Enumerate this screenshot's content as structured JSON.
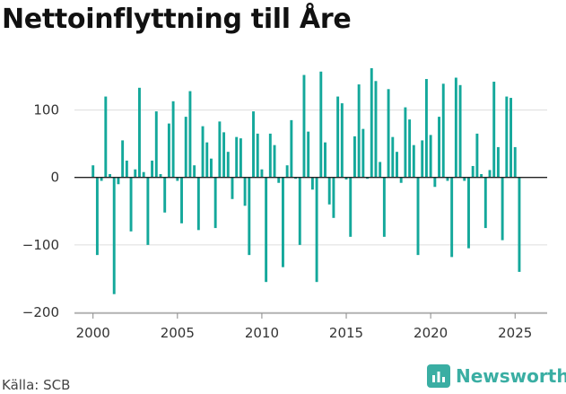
{
  "title": "Nettoinflyttning till Åre",
  "source": "Källa: SCB",
  "brand": {
    "name": "Newsworthy",
    "icon": "chart-bubble-icon"
  },
  "colors": {
    "bar": "#14a89b",
    "zero_line": "#222222",
    "grid": "#dddddd",
    "brand": "#3aaea3"
  },
  "chart_data": {
    "type": "bar",
    "title": "Nettoinflyttning till Åre",
    "xlabel": "",
    "ylabel": "",
    "ylim": [
      -200,
      170
    ],
    "yticks": [
      -200,
      -100,
      0,
      100
    ],
    "xlim": [
      1998.9,
      2026.9
    ],
    "xticks": [
      2000,
      2005,
      2010,
      2015,
      2020,
      2025
    ],
    "grid": true,
    "x": [
      2000.0,
      2000.25,
      2000.5,
      2000.75,
      2001.0,
      2001.25,
      2001.5,
      2001.75,
      2002.0,
      2002.25,
      2002.5,
      2002.75,
      2003.0,
      2003.25,
      2003.5,
      2003.75,
      2004.0,
      2004.25,
      2004.5,
      2004.75,
      2005.0,
      2005.25,
      2005.5,
      2005.75,
      2006.0,
      2006.25,
      2006.5,
      2006.75,
      2007.0,
      2007.25,
      2007.5,
      2007.75,
      2008.0,
      2008.25,
      2008.5,
      2008.75,
      2009.0,
      2009.25,
      2009.5,
      2009.75,
      2010.0,
      2010.25,
      2010.5,
      2010.75,
      2011.0,
      2011.25,
      2011.5,
      2011.75,
      2012.0,
      2012.25,
      2012.5,
      2012.75,
      2013.0,
      2013.25,
      2013.5,
      2013.75,
      2014.0,
      2014.25,
      2014.5,
      2014.75,
      2015.0,
      2015.25,
      2015.5,
      2015.75,
      2016.0,
      2016.25,
      2016.5,
      2016.75,
      2017.0,
      2017.25,
      2017.5,
      2017.75,
      2018.0,
      2018.25,
      2018.5,
      2018.75,
      2019.0,
      2019.25,
      2019.5,
      2019.75,
      2020.0,
      2020.25,
      2020.5,
      2020.75,
      2021.0,
      2021.25,
      2021.5,
      2021.75,
      2022.0,
      2022.25,
      2022.5,
      2022.75,
      2023.0,
      2023.25,
      2023.5,
      2023.75,
      2024.0,
      2024.25,
      2024.5,
      2024.75,
      2025.0,
      2025.25
    ],
    "values": [
      18,
      -115,
      -5,
      120,
      5,
      -173,
      -10,
      55,
      25,
      -80,
      12,
      133,
      8,
      -100,
      25,
      98,
      5,
      -52,
      80,
      113,
      -5,
      -68,
      90,
      128,
      18,
      -78,
      76,
      52,
      28,
      -75,
      83,
      67,
      38,
      -32,
      60,
      58,
      -42,
      -115,
      98,
      65,
      12,
      -155,
      65,
      48,
      -8,
      -133,
      18,
      85,
      -2,
      -100,
      152,
      68,
      -18,
      -155,
      157,
      52,
      -40,
      -60,
      120,
      110,
      -3,
      -88,
      61,
      138,
      72,
      -2,
      162,
      143,
      23,
      -88,
      131,
      60,
      38,
      -8,
      104,
      86,
      48,
      -115,
      55,
      146,
      63,
      -14,
      90,
      139,
      -5,
      -118,
      148,
      137,
      -5,
      -105,
      17,
      65,
      5,
      -75,
      11,
      142,
      45,
      -93,
      120,
      118,
      45,
      -140
    ]
  }
}
